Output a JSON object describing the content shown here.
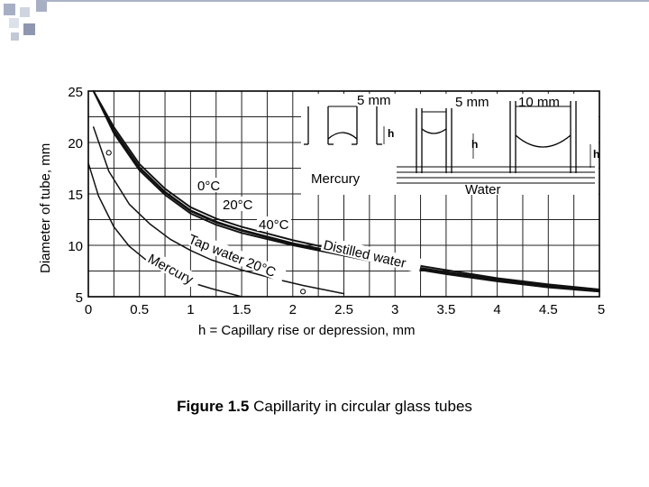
{
  "slide": {
    "caption_label": "Figure 1.5",
    "caption_text": " Capillarity in circular glass tubes"
  },
  "chart_data": {
    "type": "line",
    "title": "",
    "xlabel": "h = Capillary rise or depression, mm",
    "ylabel": "Diameter of tube, mm",
    "xlim": [
      0,
      5
    ],
    "ylim": [
      5,
      25
    ],
    "x_ticks": [
      "0",
      "0.5",
      "1",
      "1.5",
      "2",
      "2.5",
      "3",
      "3.5",
      "4",
      "4.5",
      "5"
    ],
    "y_ticks": [
      "25",
      "20",
      "15",
      "10",
      "5"
    ],
    "grid": true,
    "series": [
      {
        "name": "0°C",
        "color": "#111111",
        "x": [
          0.05,
          0.25,
          0.5,
          0.75,
          1.0,
          1.25,
          1.5,
          2.0,
          2.5,
          3.0,
          3.5,
          4.0,
          4.5,
          5.0
        ],
        "y": [
          25,
          21.5,
          17.9,
          15.5,
          13.7,
          12.6,
          11.8,
          10.5,
          9.4,
          8.4,
          7.6,
          6.8,
          6.2,
          5.7
        ]
      },
      {
        "name": "20°C",
        "color": "#111111",
        "x": [
          0.05,
          0.25,
          0.5,
          0.75,
          1.0,
          1.25,
          1.5,
          2.0,
          2.5,
          3.0,
          3.5,
          4.0,
          4.5,
          5.0
        ],
        "y": [
          25,
          21.2,
          17.6,
          15.2,
          13.4,
          12.3,
          11.5,
          10.2,
          9.2,
          8.2,
          7.4,
          6.7,
          6.1,
          5.6
        ]
      },
      {
        "name": "40°C",
        "color": "#111111",
        "x": [
          0.05,
          0.25,
          0.5,
          0.75,
          1.0,
          1.25,
          1.5,
          2.0,
          2.5,
          3.0,
          3.5,
          4.0,
          4.5,
          5.0
        ],
        "y": [
          25,
          20.9,
          17.3,
          14.9,
          13.1,
          12.0,
          11.2,
          10.0,
          9.0,
          8.0,
          7.2,
          6.5,
          5.9,
          5.5
        ]
      },
      {
        "name": "Distilled water",
        "color": "#111111",
        "x": [
          0.05,
          0.25,
          0.5,
          0.75,
          1.0,
          1.25,
          1.5,
          2.0,
          2.5,
          3.0,
          3.5,
          4.0,
          4.5,
          5.0
        ],
        "y": [
          25,
          21.0,
          17.5,
          15.1,
          13.3,
          12.2,
          11.4,
          10.1,
          9.1,
          8.1,
          7.3,
          6.6,
          6.0,
          5.5
        ]
      },
      {
        "name": "Tap water 20°C",
        "color": "#111111",
        "x": [
          0.05,
          0.2,
          0.4,
          0.6,
          0.8,
          1.0,
          1.2,
          1.5,
          1.8,
          2.1,
          2.5
        ],
        "y": [
          21.5,
          17.2,
          14.0,
          12.1,
          10.6,
          9.5,
          8.6,
          7.6,
          6.8,
          6.1,
          5.3
        ]
      },
      {
        "name": "Mercury",
        "color": "#111111",
        "x": [
          0.0,
          0.1,
          0.25,
          0.4,
          0.6,
          0.8,
          1.0,
          1.2,
          1.5
        ],
        "y": [
          18.0,
          14.8,
          11.8,
          9.9,
          8.3,
          7.2,
          6.4,
          5.8,
          5.0
        ]
      }
    ],
    "markers": [
      {
        "x": 0.2,
        "y": 19.0
      },
      {
        "x": 2.1,
        "y": 5.5
      }
    ],
    "annotations": {
      "curve_labels": [
        "0°C",
        "20°C",
        "40°C",
        "Distilled water",
        "Tap water 20°C",
        "Mercury"
      ],
      "inset": {
        "dim_left": "5 mm",
        "dim_mid": "5 mm",
        "dim_right": "10 mm",
        "h_label": "h",
        "mercury_label": "Mercury",
        "water_label": "Water"
      }
    }
  }
}
